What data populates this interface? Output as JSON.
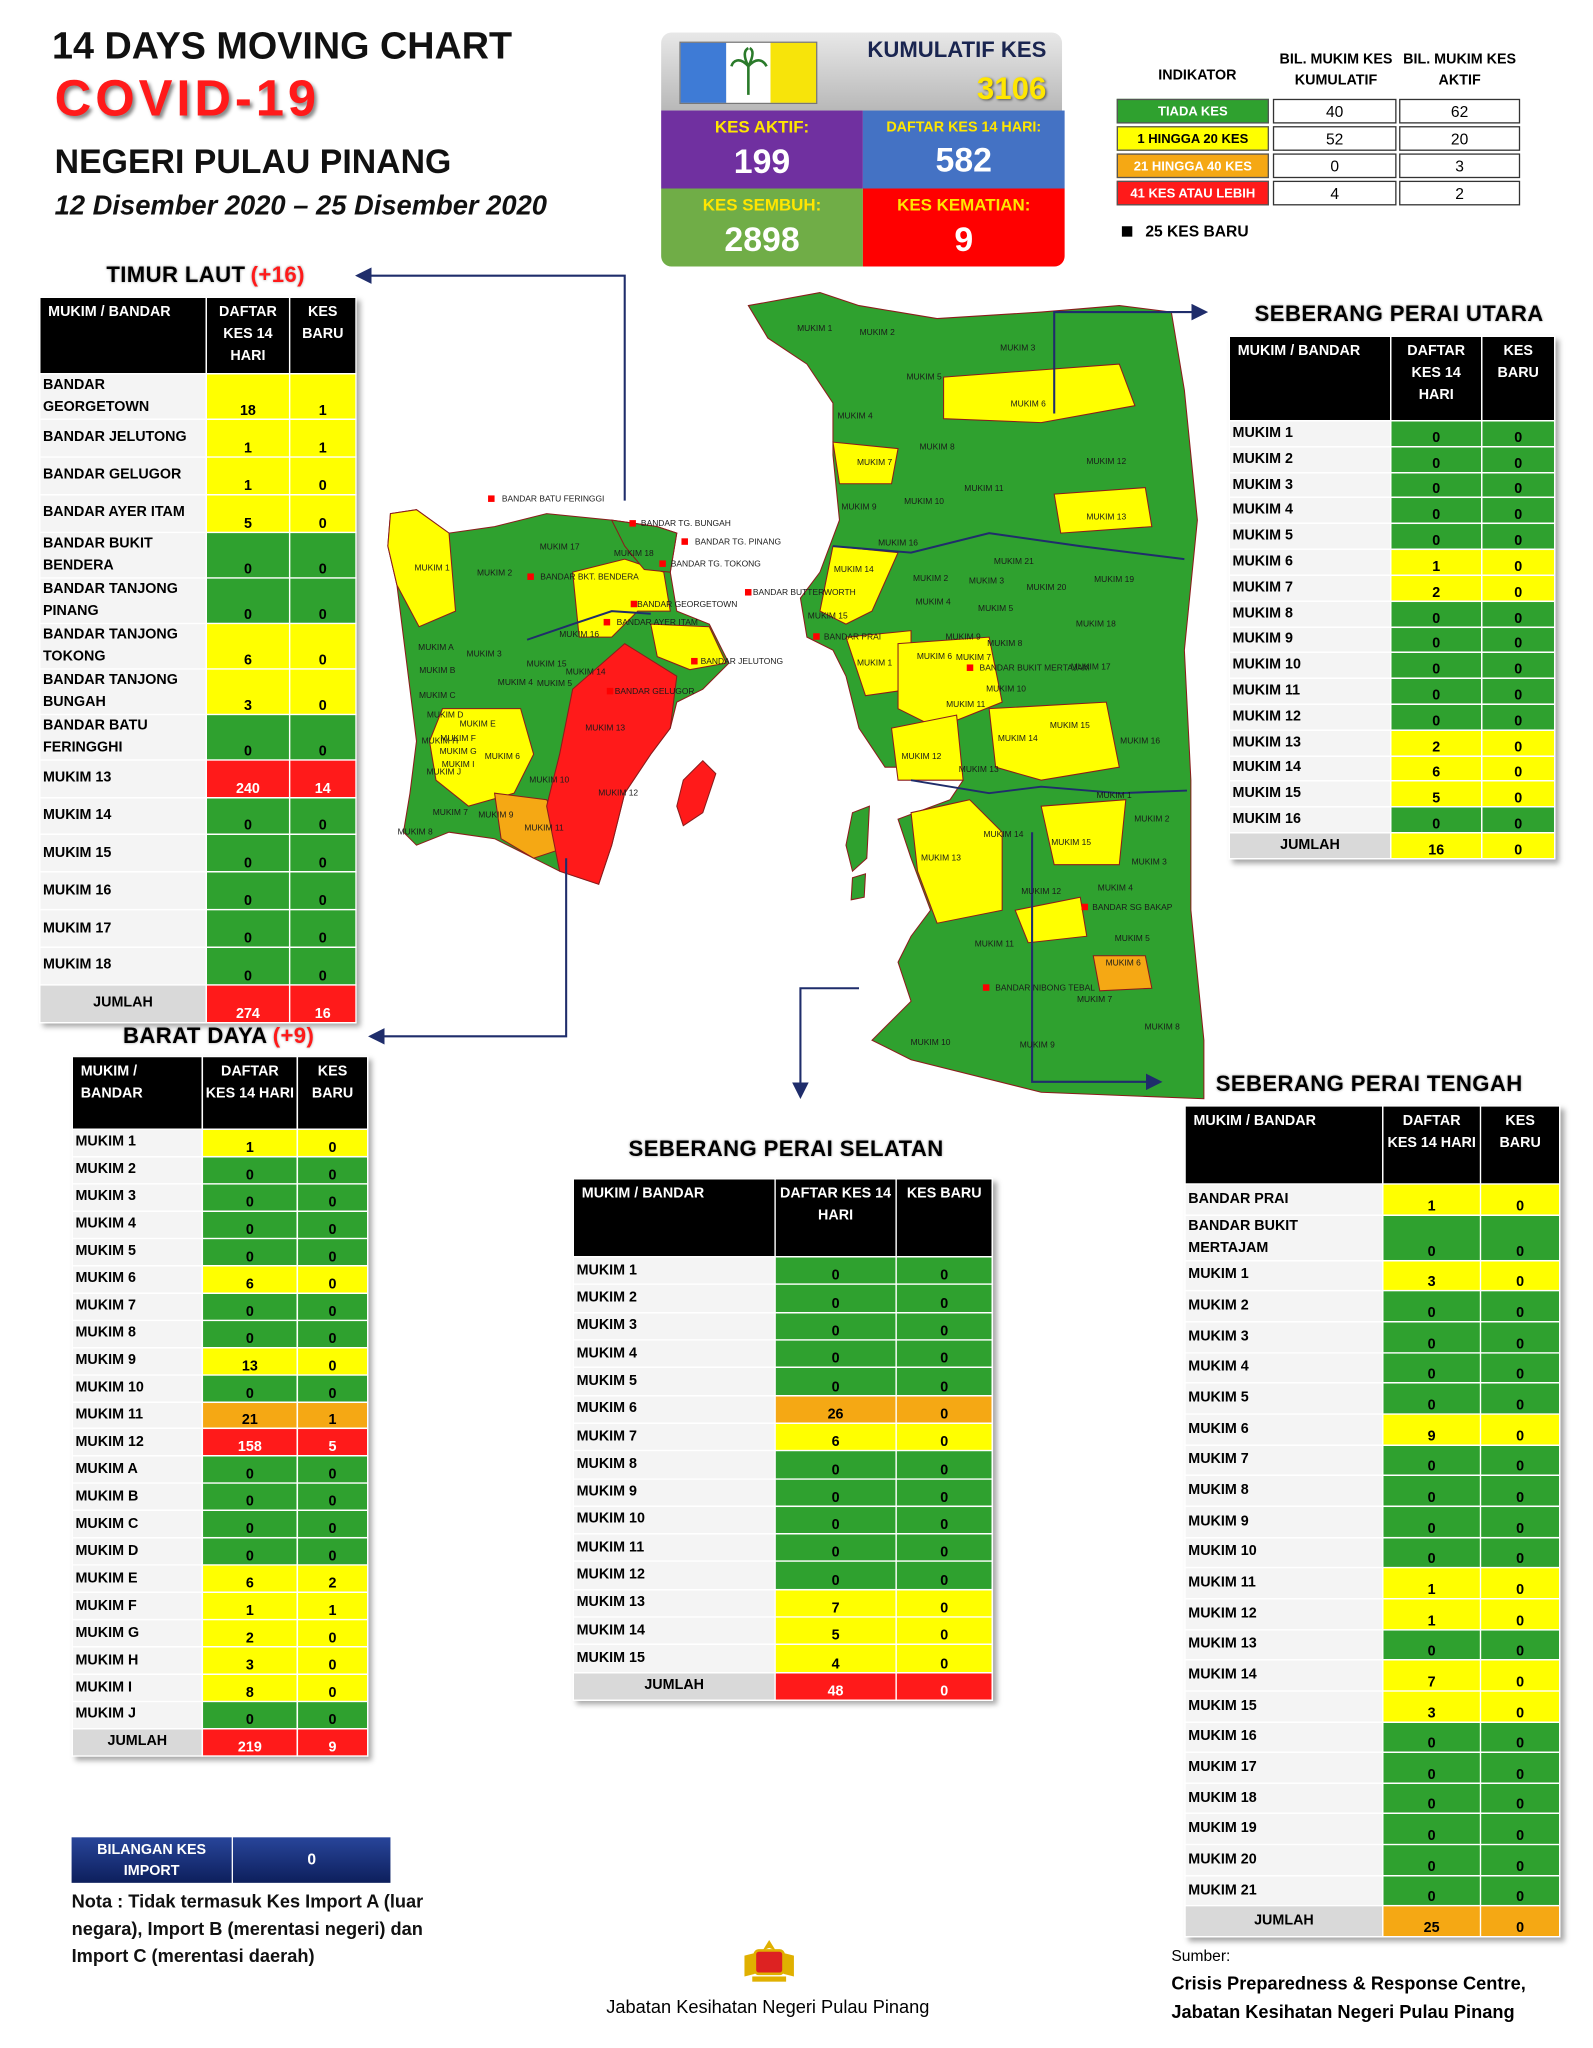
{
  "header": {
    "title": "14  DAYS MOVING CHART",
    "subtitle": "COVID-19",
    "state": "NEGERI PULAU PINANG",
    "date": "12 Disember 2020 – 25 Disember 2020"
  },
  "summary": {
    "kumulatif_label": "KUMULATIF KES",
    "kumulatif": 3106,
    "aktif_label": "KES AKTIF:",
    "aktif": 199,
    "daftar_label": "DAFTAR KES 14 HARI:",
    "daftar": 582,
    "sembuh_label": "KES SEMBUH:",
    "sembuh": 2898,
    "kematian_label": "KES KEMATIAN:",
    "kematian": 9
  },
  "indicator": {
    "headers": [
      "INDIKATOR",
      "BIL. MUKIM KES KUMULATIF",
      "BIL. MUKIM KES AKTIF"
    ],
    "rows": [
      {
        "label": "TIADA KES",
        "color": "#2fa12f",
        "kumulatif": 40,
        "aktif": 62
      },
      {
        "label": "1 HINGGA 20 KES",
        "color": "#ffff00",
        "kumulatif": 52,
        "aktif": 20
      },
      {
        "label": "21 HINGGA 40 KES",
        "color": "#f5a814",
        "kumulatif": 0,
        "aktif": 3
      },
      {
        "label": "41 KES ATAU LEBIH",
        "color": "#ff1a1a",
        "kumulatif": 4,
        "aktif": 2
      }
    ],
    "new_cases": "25 KES BARU"
  },
  "tables": {
    "timur_laut": {
      "title": "TIMUR LAUT",
      "delta": "(+16)",
      "headers": [
        "MUKIM / BANDAR",
        "DAFTAR KES 14 HARI",
        "KES BARU"
      ],
      "rows": [
        {
          "name": "BANDAR GEORGETOWN",
          "daftar": 18,
          "baru": 1,
          "color": "#ffff00"
        },
        {
          "name": "BANDAR JELUTONG",
          "daftar": 1,
          "baru": 1,
          "color": "#ffff00"
        },
        {
          "name": "BANDAR GELUGOR",
          "daftar": 1,
          "baru": 0,
          "color": "#ffff00"
        },
        {
          "name": "BANDAR AYER ITAM",
          "daftar": 5,
          "baru": 0,
          "color": "#ffff00"
        },
        {
          "name": "BANDAR BUKIT BENDERA",
          "daftar": 0,
          "baru": 0,
          "color": "#2fa12f"
        },
        {
          "name": "BANDAR TANJONG PINANG",
          "daftar": 0,
          "baru": 0,
          "color": "#2fa12f"
        },
        {
          "name": "BANDAR TANJONG TOKONG",
          "daftar": 6,
          "baru": 0,
          "color": "#ffff00"
        },
        {
          "name": "BANDAR TANJONG BUNGAH",
          "daftar": 3,
          "baru": 0,
          "color": "#ffff00"
        },
        {
          "name": "BANDAR BATU FERINGGHI",
          "daftar": 0,
          "baru": 0,
          "color": "#2fa12f"
        },
        {
          "name": "MUKIM 13",
          "daftar": 240,
          "baru": 14,
          "color": "#ff1a1a"
        },
        {
          "name": "MUKIM 14",
          "daftar": 0,
          "baru": 0,
          "color": "#2fa12f"
        },
        {
          "name": "MUKIM 15",
          "daftar": 0,
          "baru": 0,
          "color": "#2fa12f"
        },
        {
          "name": "MUKIM 16",
          "daftar": 0,
          "baru": 0,
          "color": "#2fa12f"
        },
        {
          "name": "MUKIM 17",
          "daftar": 0,
          "baru": 0,
          "color": "#2fa12f"
        },
        {
          "name": "MUKIM 18",
          "daftar": 0,
          "baru": 0,
          "color": "#2fa12f"
        }
      ],
      "total": {
        "name": "JUMLAH",
        "daftar": 274,
        "baru": 16,
        "color": "#ff1a1a"
      }
    },
    "barat_daya": {
      "title": "BARAT DAYA",
      "delta": "(+9)",
      "headers": [
        "MUKIM / BANDAR",
        "DAFTAR KES 14 HARI",
        "KES BARU"
      ],
      "rows": [
        {
          "name": "MUKIM 1",
          "daftar": 1,
          "baru": 0,
          "color": "#ffff00"
        },
        {
          "name": "MUKIM 2",
          "daftar": 0,
          "baru": 0,
          "color": "#2fa12f"
        },
        {
          "name": "MUKIM 3",
          "daftar": 0,
          "baru": 0,
          "color": "#2fa12f"
        },
        {
          "name": "MUKIM 4",
          "daftar": 0,
          "baru": 0,
          "color": "#2fa12f"
        },
        {
          "name": "MUKIM 5",
          "daftar": 0,
          "baru": 0,
          "color": "#2fa12f"
        },
        {
          "name": "MUKIM 6",
          "daftar": 6,
          "baru": 0,
          "color": "#ffff00"
        },
        {
          "name": "MUKIM 7",
          "daftar": 0,
          "baru": 0,
          "color": "#2fa12f"
        },
        {
          "name": "MUKIM 8",
          "daftar": 0,
          "baru": 0,
          "color": "#2fa12f"
        },
        {
          "name": "MUKIM 9",
          "daftar": 13,
          "baru": 0,
          "color": "#ffff00"
        },
        {
          "name": "MUKIM 10",
          "daftar": 0,
          "baru": 0,
          "color": "#2fa12f"
        },
        {
          "name": "MUKIM 11",
          "daftar": 21,
          "baru": 1,
          "color": "#f5a814"
        },
        {
          "name": "MUKIM 12",
          "daftar": 158,
          "baru": 5,
          "color": "#ff1a1a"
        },
        {
          "name": "MUKIM A",
          "daftar": 0,
          "baru": 0,
          "color": "#2fa12f"
        },
        {
          "name": "MUKIM B",
          "daftar": 0,
          "baru": 0,
          "color": "#2fa12f"
        },
        {
          "name": "MUKIM C",
          "daftar": 0,
          "baru": 0,
          "color": "#2fa12f"
        },
        {
          "name": "MUKIM D",
          "daftar": 0,
          "baru": 0,
          "color": "#2fa12f"
        },
        {
          "name": "MUKIM E",
          "daftar": 6,
          "baru": 2,
          "color": "#ffff00"
        },
        {
          "name": "MUKIM F",
          "daftar": 1,
          "baru": 1,
          "color": "#ffff00"
        },
        {
          "name": "MUKIM G",
          "daftar": 2,
          "baru": 0,
          "color": "#ffff00"
        },
        {
          "name": "MUKIM H",
          "daftar": 3,
          "baru": 0,
          "color": "#ffff00"
        },
        {
          "name": "MUKIM I",
          "daftar": 8,
          "baru": 0,
          "color": "#ffff00"
        },
        {
          "name": "MUKIM J",
          "daftar": 0,
          "baru": 0,
          "color": "#2fa12f"
        }
      ],
      "total": {
        "name": "JUMLAH",
        "daftar": 219,
        "baru": 9,
        "color": "#ff1a1a"
      }
    },
    "seberang_perai_selatan": {
      "title": "SEBERANG PERAI SELATAN",
      "headers": [
        "MUKIM / BANDAR",
        "DAFTAR KES 14 HARI",
        "KES BARU"
      ],
      "rows": [
        {
          "name": "MUKIM 1",
          "daftar": 0,
          "baru": 0,
          "color": "#2fa12f"
        },
        {
          "name": "MUKIM 2",
          "daftar": 0,
          "baru": 0,
          "color": "#2fa12f"
        },
        {
          "name": "MUKIM 3",
          "daftar": 0,
          "baru": 0,
          "color": "#2fa12f"
        },
        {
          "name": "MUKIM 4",
          "daftar": 0,
          "baru": 0,
          "color": "#2fa12f"
        },
        {
          "name": "MUKIM 5",
          "daftar": 0,
          "baru": 0,
          "color": "#2fa12f"
        },
        {
          "name": "MUKIM 6",
          "daftar": 26,
          "baru": 0,
          "color": "#f5a814"
        },
        {
          "name": "MUKIM 7",
          "daftar": 6,
          "baru": 0,
          "color": "#ffff00"
        },
        {
          "name": "MUKIM 8",
          "daftar": 0,
          "baru": 0,
          "color": "#2fa12f"
        },
        {
          "name": "MUKIM 9",
          "daftar": 0,
          "baru": 0,
          "color": "#2fa12f"
        },
        {
          "name": "MUKIM 10",
          "daftar": 0,
          "baru": 0,
          "color": "#2fa12f"
        },
        {
          "name": "MUKIM 11",
          "daftar": 0,
          "baru": 0,
          "color": "#2fa12f"
        },
        {
          "name": "MUKIM 12",
          "daftar": 0,
          "baru": 0,
          "color": "#2fa12f"
        },
        {
          "name": "MUKIM 13",
          "daftar": 7,
          "baru": 0,
          "color": "#ffff00"
        },
        {
          "name": "MUKIM 14",
          "daftar": 5,
          "baru": 0,
          "color": "#ffff00"
        },
        {
          "name": "MUKIM 15",
          "daftar": 4,
          "baru": 0,
          "color": "#ffff00"
        }
      ],
      "total": {
        "name": "JUMLAH",
        "daftar": 48,
        "baru": 0,
        "color": "#ff1a1a"
      }
    },
    "seberang_perai_utara": {
      "title": "SEBERANG PERAI UTARA",
      "headers": [
        "MUKIM / BANDAR",
        "DAFTAR KES 14 HARI",
        "KES BARU"
      ],
      "rows": [
        {
          "name": "MUKIM 1",
          "daftar": 0,
          "baru": 0,
          "color": "#2fa12f"
        },
        {
          "name": "MUKIM 2",
          "daftar": 0,
          "baru": 0,
          "color": "#2fa12f"
        },
        {
          "name": "MUKIM 3",
          "daftar": 0,
          "baru": 0,
          "color": "#2fa12f"
        },
        {
          "name": "MUKIM 4",
          "daftar": 0,
          "baru": 0,
          "color": "#2fa12f"
        },
        {
          "name": "MUKIM 5",
          "daftar": 0,
          "baru": 0,
          "color": "#2fa12f"
        },
        {
          "name": "MUKIM 6",
          "daftar": 1,
          "baru": 0,
          "color": "#ffff00"
        },
        {
          "name": "MUKIM 7",
          "daftar": 2,
          "baru": 0,
          "color": "#ffff00"
        },
        {
          "name": "MUKIM 8",
          "daftar": 0,
          "baru": 0,
          "color": "#2fa12f"
        },
        {
          "name": "MUKIM 9",
          "daftar": 0,
          "baru": 0,
          "color": "#2fa12f"
        },
        {
          "name": "MUKIM 10",
          "daftar": 0,
          "baru": 0,
          "color": "#2fa12f"
        },
        {
          "name": "MUKIM 11",
          "daftar": 0,
          "baru": 0,
          "color": "#2fa12f"
        },
        {
          "name": "MUKIM 12",
          "daftar": 0,
          "baru": 0,
          "color": "#2fa12f"
        },
        {
          "name": "MUKIM 13",
          "daftar": 2,
          "baru": 0,
          "color": "#ffff00"
        },
        {
          "name": "MUKIM 14",
          "daftar": 6,
          "baru": 0,
          "color": "#ffff00"
        },
        {
          "name": "MUKIM 15",
          "daftar": 5,
          "baru": 0,
          "color": "#ffff00"
        },
        {
          "name": "MUKIM 16",
          "daftar": 0,
          "baru": 0,
          "color": "#2fa12f"
        }
      ],
      "total": {
        "name": "JUMLAH",
        "daftar": 16,
        "baru": 0,
        "color": "#ffff00"
      }
    },
    "seberang_perai_tengah": {
      "title": "SEBERANG PERAI TENGAH",
      "headers": [
        "MUKIM / BANDAR",
        "DAFTAR KES 14 HARI",
        "KES BARU"
      ],
      "rows": [
        {
          "name": "BANDAR PRAI",
          "daftar": 1,
          "baru": 0,
          "color": "#ffff00"
        },
        {
          "name": "BANDAR BUKIT MERTAJAM",
          "daftar": 0,
          "baru": 0,
          "color": "#2fa12f"
        },
        {
          "name": "MUKIM 1",
          "daftar": 3,
          "baru": 0,
          "color": "#ffff00"
        },
        {
          "name": "MUKIM 2",
          "daftar": 0,
          "baru": 0,
          "color": "#2fa12f"
        },
        {
          "name": "MUKIM 3",
          "daftar": 0,
          "baru": 0,
          "color": "#2fa12f"
        },
        {
          "name": "MUKIM 4",
          "daftar": 0,
          "baru": 0,
          "color": "#2fa12f"
        },
        {
          "name": "MUKIM 5",
          "daftar": 0,
          "baru": 0,
          "color": "#2fa12f"
        },
        {
          "name": "MUKIM 6",
          "daftar": 9,
          "baru": 0,
          "color": "#ffff00"
        },
        {
          "name": "MUKIM 7",
          "daftar": 0,
          "baru": 0,
          "color": "#2fa12f"
        },
        {
          "name": "MUKIM 8",
          "daftar": 0,
          "baru": 0,
          "color": "#2fa12f"
        },
        {
          "name": "MUKIM 9",
          "daftar": 0,
          "baru": 0,
          "color": "#2fa12f"
        },
        {
          "name": "MUKIM 10",
          "daftar": 0,
          "baru": 0,
          "color": "#2fa12f"
        },
        {
          "name": "MUKIM 11",
          "daftar": 1,
          "baru": 0,
          "color": "#ffff00"
        },
        {
          "name": "MUKIM 12",
          "daftar": 1,
          "baru": 0,
          "color": "#ffff00"
        },
        {
          "name": "MUKIM 13",
          "daftar": 0,
          "baru": 0,
          "color": "#2fa12f"
        },
        {
          "name": "MUKIM 14",
          "daftar": 7,
          "baru": 0,
          "color": "#ffff00"
        },
        {
          "name": "MUKIM 15",
          "daftar": 3,
          "baru": 0,
          "color": "#ffff00"
        },
        {
          "name": "MUKIM 16",
          "daftar": 0,
          "baru": 0,
          "color": "#2fa12f"
        },
        {
          "name": "MUKIM 17",
          "daftar": 0,
          "baru": 0,
          "color": "#2fa12f"
        },
        {
          "name": "MUKIM 18",
          "daftar": 0,
          "baru": 0,
          "color": "#2fa12f"
        },
        {
          "name": "MUKIM 19",
          "daftar": 0,
          "baru": 0,
          "color": "#2fa12f"
        },
        {
          "name": "MUKIM 20",
          "daftar": 0,
          "baru": 0,
          "color": "#2fa12f"
        },
        {
          "name": "MUKIM 21",
          "daftar": 0,
          "baru": 0,
          "color": "#2fa12f"
        }
      ],
      "total": {
        "name": "JUMLAH",
        "daftar": 25,
        "baru": 0,
        "color": "#f5a814"
      }
    }
  },
  "import": {
    "label": "BILANGAN KES IMPORT",
    "value": 0,
    "note": "Nota : Tidak termasuk Kes Import A (luar negara), Import B (merentasi negeri) dan Import C (merentasi daerah)"
  },
  "footer": {
    "agency": "Jabatan Kesihatan Negeri Pulau Pinang",
    "source_label": "Sumber:",
    "source_line1": "Crisis Preparedness & Response Centre,",
    "source_line2": "Jabatan Kesihatan Negeri Pulau Pinang"
  },
  "map": {
    "labels": [
      "BANDAR BATU FERINGGI",
      "BANDAR TG. BUNGAH",
      "BANDAR TG. PINANG",
      "BANDAR TG. TOKONG",
      "BANDAR BKT. BENDERA",
      "BANDAR GEORGETOWN",
      "BANDAR AYER ITAM",
      "BANDAR JELUTONG",
      "BANDAR GELUGOR",
      "MUKIM 1",
      "MUKIM 2",
      "MUKIM 3",
      "MUKIM 4",
      "MUKIM 5",
      "MUKIM 6",
      "MUKIM 7",
      "MUKIM 8",
      "MUKIM 9",
      "MUKIM 10",
      "MUKIM 11",
      "MUKIM 12",
      "MUKIM 13",
      "MUKIM 14",
      "MUKIM 15",
      "MUKIM 16",
      "MUKIM 17",
      "MUKIM 18",
      "MUKIM A",
      "MUKIM B",
      "MUKIM C",
      "MUKIM D",
      "MUKIM E",
      "MUKIM F",
      "MUKIM G",
      "MUKIM H",
      "MUKIM I",
      "MUKIM J",
      "MUKIM 1",
      "MUKIM 2",
      "MUKIM 3",
      "MUKIM 4",
      "MUKIM 5",
      "MUKIM 6",
      "MUKIM 7",
      "MUKIM 8",
      "MUKIM 9",
      "MUKIM 10",
      "MUKIM 11",
      "MUKIM 12",
      "MUKIM 13",
      "MUKIM 14",
      "MUKIM 15",
      "MUKIM 16",
      "BANDAR BUTTERWORTH",
      "BANDAR PRAI",
      "BANDAR BUKIT MERTAJAM",
      "MUKIM 1",
      "MUKIM 2",
      "MUKIM 3",
      "MUKIM 4",
      "MUKIM 5",
      "MUKIM 6",
      "MUKIM 7",
      "MUKIM 8",
      "MUKIM 9",
      "MUKIM 10",
      "MUKIM 11",
      "MUKIM 12",
      "MUKIM 13",
      "MUKIM 14",
      "MUKIM 15",
      "MUKIM 16",
      "MUKIM 17",
      "MUKIM 18",
      "MUKIM 19",
      "MUKIM 20",
      "MUKIM 21",
      "MUKIM 1",
      "MUKIM 2",
      "MUKIM 3",
      "MUKIM 4",
      "BANDAR SG BAKAP",
      "MUKIM 5",
      "MUKIM 6",
      "MUKIM 7",
      "MUKIM 8",
      "MUKIM 9",
      "MUKIM 10",
      "MUKIM 11",
      "MUKIM 12",
      "MUKIM 13",
      "MUKIM 14",
      "MUKIM 15",
      "BANDAR NIBONG TEBAL"
    ]
  }
}
